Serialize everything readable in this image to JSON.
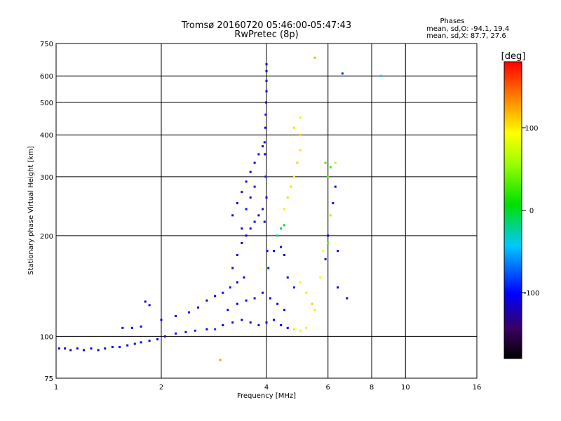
{
  "chart_data": {
    "type": "scatter",
    "title": "Tromsø 20160720 05:46:00-05:47:43",
    "subtitle": "RwPretec (8p)",
    "xlabel": "Frequency [MHz]",
    "ylabel": "Stationary phase Virtual Height [km]",
    "x_scale": "log",
    "y_scale": "log",
    "xlim": [
      1,
      16
    ],
    "ylim": [
      75,
      750
    ],
    "x_ticks": [
      1,
      2,
      4,
      6,
      8,
      10,
      16
    ],
    "y_ticks": [
      75,
      100,
      200,
      300,
      400,
      500,
      600,
      750
    ],
    "grid": true,
    "phase_info": {
      "header": "Phases",
      "o_line": "mean, sd,O: -94.1, 19.4",
      "x_line": "mean, sd,X:  87.7, 27.6"
    },
    "colorbar": {
      "label": "[deg]",
      "range": [
        -180,
        180
      ],
      "ticks": [
        100,
        0,
        -100
      ]
    },
    "points": [
      [
        1.02,
        92,
        -110
      ],
      [
        1.06,
        92,
        -105
      ],
      [
        1.1,
        91,
        -115
      ],
      [
        1.15,
        92,
        -100
      ],
      [
        1.2,
        91,
        -110
      ],
      [
        1.26,
        92,
        -105
      ],
      [
        1.32,
        91,
        -112
      ],
      [
        1.38,
        92,
        -100
      ],
      [
        1.45,
        93,
        -108
      ],
      [
        1.52,
        93,
        -100
      ],
      [
        1.6,
        94,
        -110
      ],
      [
        1.68,
        95,
        -102
      ],
      [
        1.75,
        96,
        -100
      ],
      [
        1.85,
        97,
        -110
      ],
      [
        1.95,
        98,
        -105
      ],
      [
        2.05,
        100,
        -100
      ],
      [
        2.2,
        102,
        -95
      ],
      [
        2.35,
        103,
        -98
      ],
      [
        2.5,
        104,
        -90
      ],
      [
        2.7,
        105,
        -100
      ],
      [
        2.85,
        105,
        -85
      ],
      [
        2.95,
        85,
        130
      ],
      [
        1.55,
        106,
        -110
      ],
      [
        1.65,
        106,
        -105
      ],
      [
        1.75,
        107,
        -100
      ],
      [
        1.8,
        127,
        -120
      ],
      [
        1.85,
        124,
        -100
      ],
      [
        2.0,
        112,
        -110
      ],
      [
        2.2,
        115,
        -100
      ],
      [
        2.4,
        118,
        -95
      ],
      [
        2.55,
        122,
        -100
      ],
      [
        2.7,
        128,
        -110
      ],
      [
        2.85,
        132,
        -105
      ],
      [
        3.0,
        135,
        -100
      ],
      [
        3.15,
        140,
        -95
      ],
      [
        3.3,
        145,
        -110
      ],
      [
        3.45,
        150,
        -100
      ],
      [
        3.0,
        108,
        -100
      ],
      [
        3.2,
        110,
        -105
      ],
      [
        3.4,
        112,
        -110
      ],
      [
        3.6,
        110,
        -100
      ],
      [
        3.8,
        108,
        -95
      ],
      [
        4.0,
        110,
        -100
      ],
      [
        4.2,
        112,
        -105
      ],
      [
        4.4,
        108,
        -100
      ],
      [
        4.6,
        106,
        -110
      ],
      [
        4.8,
        105,
        80
      ],
      [
        5.0,
        104,
        90
      ],
      [
        5.2,
        106,
        100
      ],
      [
        3.1,
        120,
        -100
      ],
      [
        3.3,
        125,
        -110
      ],
      [
        3.5,
        128,
        -100
      ],
      [
        3.7,
        130,
        -95
      ],
      [
        3.9,
        135,
        -105
      ],
      [
        4.1,
        130,
        -100
      ],
      [
        4.3,
        125,
        -110
      ],
      [
        4.5,
        120,
        -100
      ],
      [
        3.2,
        160,
        -100
      ],
      [
        3.3,
        175,
        -105
      ],
      [
        3.4,
        190,
        -110
      ],
      [
        3.5,
        200,
        -100
      ],
      [
        3.6,
        210,
        -95
      ],
      [
        3.7,
        220,
        -100
      ],
      [
        3.8,
        230,
        -110
      ],
      [
        3.9,
        240,
        -100
      ],
      [
        3.2,
        230,
        -130
      ],
      [
        3.3,
        250,
        -120
      ],
      [
        3.4,
        270,
        -110
      ],
      [
        3.5,
        290,
        -100
      ],
      [
        3.6,
        310,
        -115
      ],
      [
        3.7,
        330,
        -105
      ],
      [
        3.8,
        350,
        -100
      ],
      [
        3.9,
        370,
        -110
      ],
      [
        3.4,
        210,
        -110
      ],
      [
        3.5,
        240,
        -100
      ],
      [
        3.6,
        260,
        -120
      ],
      [
        3.7,
        280,
        -100
      ],
      [
        3.95,
        380,
        -100
      ],
      [
        3.97,
        420,
        -105
      ],
      [
        3.98,
        460,
        -100
      ],
      [
        3.99,
        500,
        -110
      ],
      [
        4.0,
        540,
        -100
      ],
      [
        4.0,
        580,
        -105
      ],
      [
        4.0,
        620,
        -100
      ],
      [
        4.0,
        650,
        -110
      ],
      [
        3.96,
        350,
        -100
      ],
      [
        3.98,
        300,
        -95
      ],
      [
        4.0,
        260,
        -100
      ],
      [
        3.95,
        220,
        -105
      ],
      [
        4.02,
        180,
        -100
      ],
      [
        4.05,
        160,
        -95
      ],
      [
        4.3,
        200,
        -10
      ],
      [
        4.4,
        210,
        -5
      ],
      [
        4.5,
        215,
        10
      ],
      [
        4.2,
        180,
        -100
      ],
      [
        4.4,
        185,
        -100
      ],
      [
        4.5,
        175,
        -105
      ],
      [
        4.5,
        240,
        100
      ],
      [
        4.6,
        260,
        105
      ],
      [
        4.7,
        280,
        110
      ],
      [
        4.8,
        300,
        100
      ],
      [
        4.9,
        330,
        110
      ],
      [
        5.0,
        360,
        105
      ],
      [
        5.0,
        400,
        110
      ],
      [
        5.0,
        450,
        100
      ],
      [
        4.8,
        420,
        105
      ],
      [
        4.6,
        150,
        -100
      ],
      [
        4.8,
        140,
        -90
      ],
      [
        5.0,
        145,
        90
      ],
      [
        5.2,
        135,
        100
      ],
      [
        5.4,
        125,
        110
      ],
      [
        5.5,
        120,
        80
      ],
      [
        5.7,
        150,
        95
      ],
      [
        5.8,
        180,
        90
      ],
      [
        5.9,
        170,
        -100
      ],
      [
        6.0,
        190,
        40
      ],
      [
        6.0,
        200,
        -100
      ],
      [
        6.1,
        230,
        60
      ],
      [
        6.2,
        250,
        -100
      ],
      [
        6.3,
        280,
        -110
      ],
      [
        5.9,
        330,
        30
      ],
      [
        6.0,
        300,
        35
      ],
      [
        6.1,
        320,
        30
      ],
      [
        6.3,
        330,
        70
      ],
      [
        6.4,
        180,
        -100
      ],
      [
        6.4,
        140,
        -110
      ],
      [
        5.5,
        680,
        120
      ],
      [
        6.6,
        610,
        -90
      ],
      [
        8.5,
        600,
        -40
      ],
      [
        6.8,
        130,
        -120
      ]
    ]
  }
}
